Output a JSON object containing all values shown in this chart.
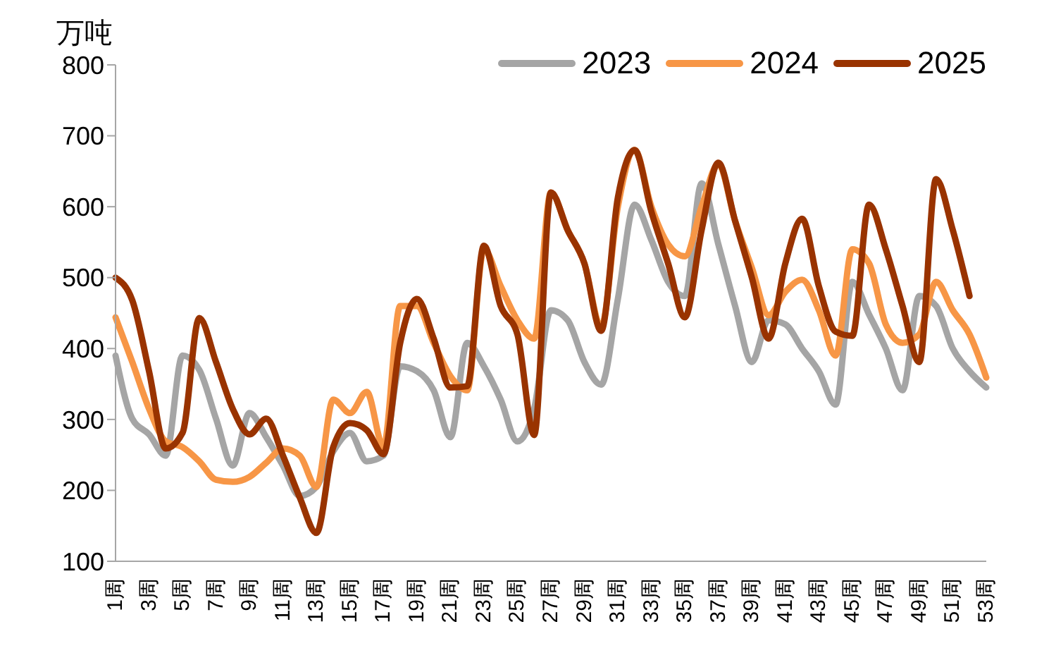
{
  "chart_data": {
    "type": "line",
    "ylabel": "万吨",
    "categories": [
      "1周",
      null,
      "3周",
      null,
      "5周",
      null,
      "7周",
      null,
      "9周",
      null,
      "11周",
      null,
      "13周",
      null,
      "15周",
      null,
      "17周",
      null,
      "19周",
      null,
      "21周",
      null,
      "23周",
      null,
      "25周",
      null,
      "27周",
      null,
      "29周",
      null,
      "31周",
      null,
      "33周",
      null,
      "35周",
      null,
      "37周",
      null,
      "39周",
      null,
      "41周",
      null,
      "43周",
      null,
      "45周",
      null,
      "47周",
      null,
      "49周",
      null,
      "51周",
      null,
      "53周"
    ],
    "series": [
      {
        "name": "2023",
        "color": "#a5a5a5",
        "values": [
          390,
          301,
          279,
          249,
          390,
          370,
          301,
          235,
          309,
          275,
          235,
          192,
          205,
          255,
          281,
          241,
          249,
          375,
          368,
          341,
          275,
          408,
          375,
          328,
          269,
          315,
          454,
          440,
          381,
          349,
          470,
          603,
          553,
          494,
          474,
          633,
          547,
          460,
          381,
          440,
          434,
          400,
          368,
          321,
          494,
          448,
          400,
          341,
          474,
          460,
          400,
          368,
          345
        ]
      },
      {
        "name": "2024",
        "color": "#f79646",
        "values": [
          444,
          381,
          315,
          269,
          261,
          241,
          215,
          212,
          219,
          239,
          259,
          249,
          205,
          328,
          309,
          339,
          261,
          460,
          460,
          408,
          361,
          341,
          540,
          488,
          440,
          414,
          620,
          567,
          520,
          430,
          600,
          680,
          600,
          547,
          530,
          600,
          660,
          580,
          514,
          447,
          480,
          497,
          454,
          390,
          540,
          520,
          434,
          408,
          420,
          494,
          454,
          420,
          359
        ]
      },
      {
        "name": "2025",
        "color": "#993300",
        "values": [
          500,
          468,
          368,
          259,
          281,
          443,
          381,
          315,
          279,
          301,
          249,
          190,
          140,
          261,
          295,
          285,
          251,
          408,
          470,
          414,
          345,
          347,
          545,
          460,
          420,
          278,
          620,
          567,
          520,
          425,
          613,
          680,
          593,
          520,
          444,
          567,
          662,
          580,
          500,
          414,
          520,
          583,
          488,
          424,
          418,
          603,
          540,
          460,
          381,
          639,
          567,
          474,
          null
        ]
      }
    ],
    "ylim": [
      100,
      800
    ],
    "yticks": [
      100,
      200,
      300,
      400,
      500,
      600,
      700,
      800
    ],
    "legend": "top right",
    "marker": "none",
    "line_style": "solid"
  }
}
